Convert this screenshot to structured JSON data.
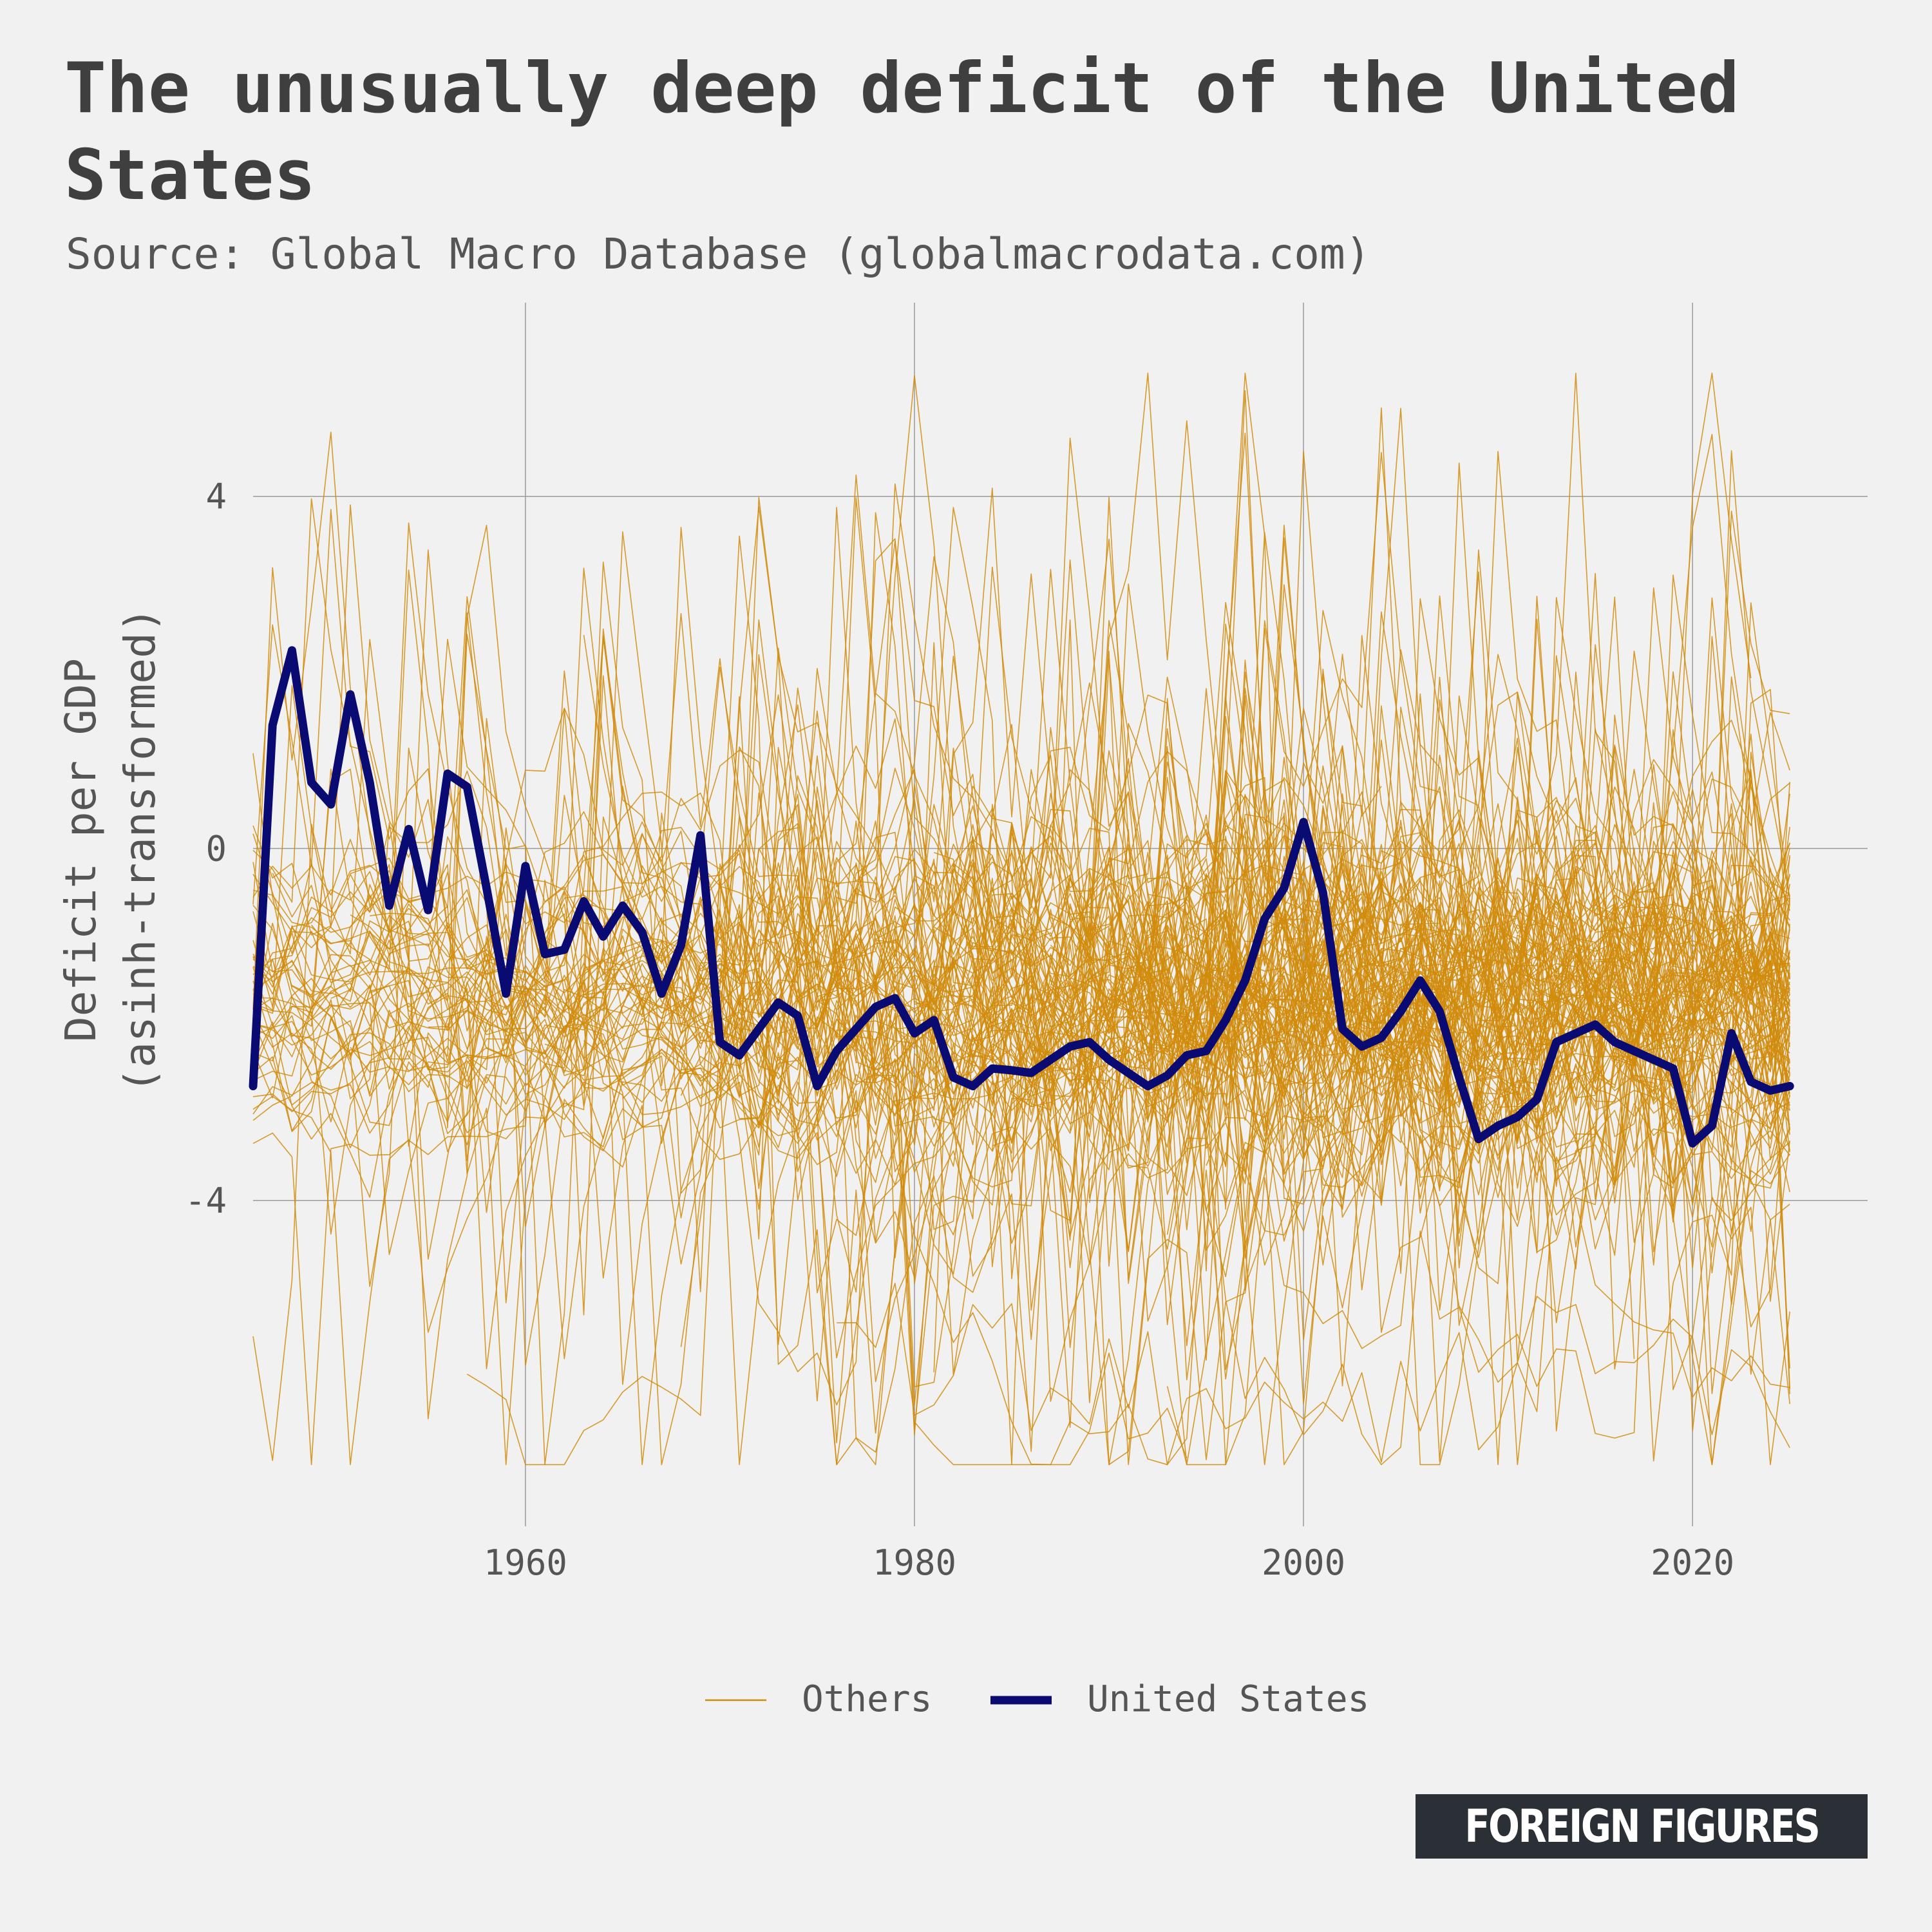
{
  "title": "The unusually deep deficit of the United States",
  "subtitle": "Source: Global Macro Database (globalmacrodata.com)",
  "brand": "FOREIGN FIGURES",
  "colors": {
    "background": "#f1f1f1",
    "others": "#d18b0a",
    "united_states": "#0a0a73",
    "grid": "#9a9a9a",
    "text": "#444444"
  },
  "chart_data": {
    "type": "line",
    "title": "The unusually deep deficit of the United States",
    "ylabel": "Deficit per GDP",
    "ylabel_line2": "(asinh-transformed)",
    "xlabel": "",
    "xlim": [
      1946,
      2029
    ],
    "ylim": [
      -7.7,
      6.2
    ],
    "x_ticks": [
      1960,
      1980,
      2000,
      2020
    ],
    "y_ticks": [
      4,
      0,
      -4
    ],
    "y_tick_labels": [
      "4",
      "0",
      "-4"
    ],
    "grid": true,
    "legend": {
      "placement": "bottom",
      "entries": [
        {
          "label": "Others",
          "color": "#d18b0a",
          "style": "thin"
        },
        {
          "label": "United States",
          "color": "#0a0a73",
          "style": "thick"
        }
      ]
    },
    "others_description": "~150 other countries, each a thin line, values ranging roughly -7 to 5.5",
    "others_count": 150,
    "series": [
      {
        "name": "United States",
        "x": [
          1946,
          1947,
          1948,
          1949,
          1950,
          1951,
          1952,
          1953,
          1954,
          1955,
          1956,
          1957,
          1958,
          1959,
          1960,
          1961,
          1962,
          1963,
          1964,
          1965,
          1966,
          1967,
          1968,
          1969,
          1970,
          1971,
          1972,
          1973,
          1974,
          1975,
          1976,
          1977,
          1978,
          1979,
          1980,
          1981,
          1982,
          1983,
          1984,
          1985,
          1986,
          1987,
          1988,
          1989,
          1990,
          1991,
          1992,
          1993,
          1994,
          1995,
          1996,
          1997,
          1998,
          1999,
          2000,
          2001,
          2002,
          2003,
          2004,
          2005,
          2006,
          2007,
          2008,
          2009,
          2010,
          2011,
          2012,
          2013,
          2014,
          2015,
          2016,
          2017,
          2018,
          2019,
          2020,
          2021,
          2022,
          2023,
          2024,
          2025
        ],
        "values": [
          -2.7,
          1.4,
          2.25,
          0.75,
          0.5,
          1.75,
          0.75,
          -0.65,
          0.22,
          -0.7,
          0.85,
          0.7,
          -0.45,
          -1.65,
          -0.2,
          -1.2,
          -1.15,
          -0.6,
          -1.0,
          -0.65,
          -0.95,
          -1.65,
          -1.1,
          0.15,
          -2.2,
          -2.35,
          -2.05,
          -1.75,
          -1.9,
          -2.7,
          -2.3,
          -2.05,
          -1.8,
          -1.7,
          -2.1,
          -1.95,
          -2.6,
          -2.7,
          -2.5,
          -2.52,
          -2.55,
          -2.4,
          -2.25,
          -2.2,
          -2.4,
          -2.55,
          -2.7,
          -2.58,
          -2.35,
          -2.3,
          -1.95,
          -1.5,
          -0.8,
          -0.45,
          0.3,
          -0.5,
          -2.05,
          -2.25,
          -2.15,
          -1.85,
          -1.5,
          -1.85,
          -2.6,
          -3.3,
          -3.15,
          -3.05,
          -2.85,
          -2.2,
          -2.1,
          -2.0,
          -2.2,
          -2.3,
          -2.4,
          -2.5,
          -3.35,
          -3.15,
          -2.1,
          -2.65,
          -2.75,
          -2.7
        ]
      }
    ]
  }
}
